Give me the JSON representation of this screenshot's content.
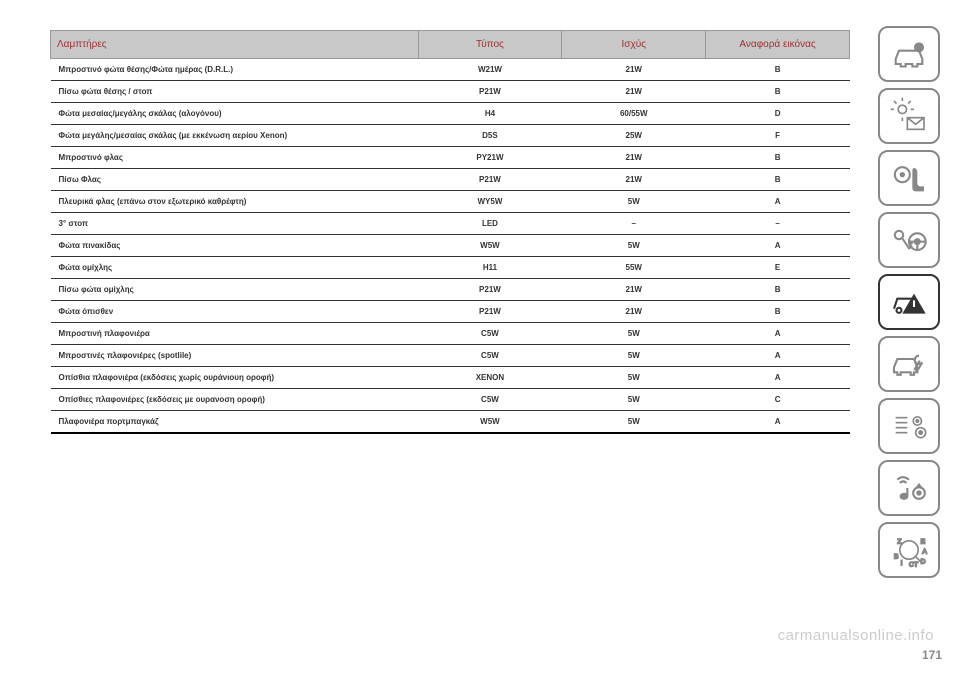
{
  "table": {
    "headers": [
      "Λαμπτήρες",
      "Τύπος",
      "Ισχύς",
      "Αναφορά εικόνας"
    ],
    "header_bg": "#c8c8c8",
    "header_color": "#a03030",
    "cell_color": "#333333",
    "border_color": "#333333",
    "rows": [
      [
        "Μπροστινό φώτα θέσης/Φώτα ημέρας (D.R.L.)",
        "W21W",
        "21W",
        "B"
      ],
      [
        "Πίσω φώτα θέσης / στοπ",
        "P21W",
        "21W",
        "B"
      ],
      [
        "Φώτα μεσαίας/μεγάλης σκάλας (αλογόνου)",
        "H4",
        "60/55W",
        "D"
      ],
      [
        "Φώτα μεγάλης/μεσαίας σκάλας (με εκκένωση αερίου Xenon)",
        "D5S",
        "25W",
        "F"
      ],
      [
        "Μπροστινό φλας",
        "PY21W",
        "21W",
        "B"
      ],
      [
        "Πίσω Φλας",
        "P21W",
        "21W",
        "B"
      ],
      [
        "Πλευρικά φλας (επάνω στον εξωτερικό καθρέφτη)",
        "WY5W",
        "5W",
        "A"
      ],
      [
        "3° στοπ",
        "LED",
        "–",
        "–"
      ],
      [
        "Φώτα πινακίδας",
        "W5W",
        "5W",
        "A"
      ],
      [
        "Φώτα ομίχλης",
        "H11",
        "55W",
        "E"
      ],
      [
        "Πίσω φώτα ομίχλης",
        "P21W",
        "21W",
        "B"
      ],
      [
        "Φώτα όπισθεν",
        "P21W",
        "21W",
        "B"
      ],
      [
        "Μπροστινή πλαφονιέρα",
        "C5W",
        "5W",
        "A"
      ],
      [
        "Μπροστινές πλαφονιέρες (spotlile)",
        "C5W",
        "5W",
        "A"
      ],
      [
        "Οπίσθια πλαφονιέρα (εκδόσεις χωρίς ουράνιουη οροφή)",
        "XENON",
        "5W",
        "A"
      ],
      [
        "Οπίσθιες πλαφονιέρες (εκδόσεις με ουρανοση οροφή)",
        "C5W",
        "5W",
        "C"
      ],
      [
        "Πλαφονιέρα πορτμπαγκάζ",
        "W5W",
        "5W",
        "A"
      ]
    ]
  },
  "sideIcons": [
    {
      "name": "car-info-icon",
      "active": false
    },
    {
      "name": "light-mail-icon",
      "active": false
    },
    {
      "name": "airbag-seat-icon",
      "active": false
    },
    {
      "name": "key-wheel-icon",
      "active": false
    },
    {
      "name": "car-warning-icon",
      "active": true
    },
    {
      "name": "car-service-icon",
      "active": false
    },
    {
      "name": "settings-gear-icon",
      "active": false
    },
    {
      "name": "media-nav-icon",
      "active": false
    },
    {
      "name": "index-icon",
      "active": false
    }
  ],
  "watermark": "carmanualsonline.info",
  "pageNumber": "171",
  "colors": {
    "icon_border": "#888888",
    "icon_border_active": "#333333",
    "watermark": "#cccccc",
    "pagenum": "#888888"
  }
}
